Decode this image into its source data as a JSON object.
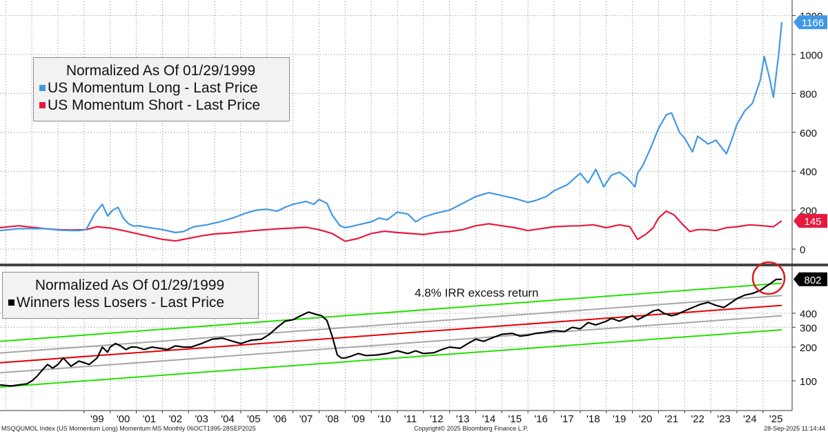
{
  "chart_data": [
    {
      "type": "line",
      "title": "Normalized As Of 01/29/1999",
      "ylim": [
        -30,
        1215
      ],
      "yticks": [
        0,
        200,
        400,
        600,
        800,
        1000,
        1200
      ],
      "grid": true,
      "legend_position": "top-left",
      "series": [
        {
          "name": "US Momentum Long - Last Price",
          "color": "#3f97e6",
          "last_label": "1166",
          "x": [
            1995.78,
            1996.5,
            1997.5,
            1998.0,
            1998.5,
            1998.8,
            1999.08,
            1999.4,
            1999.7,
            1999.9,
            2000.1,
            2000.3,
            2000.5,
            2000.7,
            2000.9,
            2001.1,
            2001.5,
            2002.0,
            2002.5,
            2002.8,
            2003.2,
            2003.7,
            2004.2,
            2004.7,
            2005.2,
            2005.6,
            2006.0,
            2006.4,
            2006.7,
            2007.0,
            2007.5,
            2007.8,
            2008.0,
            2008.3,
            2008.5,
            2008.8,
            2009.0,
            2009.2,
            2009.5,
            2010.0,
            2010.3,
            2010.6,
            2011.0,
            2011.4,
            2011.7,
            2012.0,
            2012.5,
            2013.0,
            2013.5,
            2014.0,
            2014.5,
            2015.0,
            2015.5,
            2016.0,
            2016.3,
            2016.7,
            2017.0,
            2017.5,
            2018.0,
            2018.3,
            2018.6,
            2018.9,
            2019.2,
            2019.5,
            2019.8,
            2020.1,
            2020.2,
            2020.4,
            2020.7,
            2021.0,
            2021.3,
            2021.5,
            2021.8,
            2022.0,
            2022.3,
            2022.5,
            2022.9,
            2023.2,
            2023.6,
            2023.8,
            2024.0,
            2024.3,
            2024.6,
            2024.9,
            2025.05,
            2025.25,
            2025.4,
            2025.6,
            2025.72
          ],
          "values": [
            95,
            105,
            105,
            98,
            95,
            95,
            100,
            180,
            230,
            170,
            200,
            215,
            160,
            130,
            118,
            120,
            110,
            100,
            85,
            90,
            115,
            125,
            140,
            160,
            185,
            200,
            205,
            195,
            215,
            230,
            245,
            230,
            255,
            235,
            175,
            120,
            110,
            115,
            125,
            140,
            160,
            150,
            190,
            180,
            140,
            165,
            185,
            200,
            235,
            270,
            290,
            275,
            260,
            240,
            250,
            270,
            300,
            330,
            390,
            340,
            410,
            320,
            380,
            395,
            365,
            320,
            390,
            430,
            520,
            620,
            690,
            700,
            600,
            570,
            500,
            580,
            540,
            560,
            490,
            560,
            640,
            710,
            750,
            870,
            990,
            880,
            780,
            1000,
            1166
          ]
        },
        {
          "name": "US Momentum Short - Last Price",
          "color": "#e8193c",
          "last_label": "145",
          "x": [
            1995.78,
            1996.5,
            1997.0,
            1997.5,
            1998.0,
            1998.5,
            1999.08,
            1999.5,
            2000.0,
            2000.5,
            2001.0,
            2001.5,
            2002.0,
            2002.5,
            2003.0,
            2003.5,
            2004.0,
            2004.5,
            2005.0,
            2005.5,
            2006.0,
            2006.5,
            2007.0,
            2007.5,
            2008.0,
            2008.5,
            2009.0,
            2009.5,
            2010.0,
            2010.5,
            2011.0,
            2011.5,
            2012.0,
            2012.5,
            2013.0,
            2013.5,
            2014.0,
            2014.5,
            2015.0,
            2015.5,
            2016.0,
            2016.5,
            2017.0,
            2017.5,
            2018.0,
            2018.5,
            2019.0,
            2019.5,
            2019.9,
            2020.2,
            2020.5,
            2020.8,
            2021.0,
            2021.3,
            2021.6,
            2021.9,
            2022.2,
            2022.5,
            2022.8,
            2023.2,
            2023.6,
            2024.0,
            2024.5,
            2025.0,
            2025.4,
            2025.72
          ],
          "values": [
            110,
            120,
            112,
            105,
            100,
            98,
            100,
            115,
            108,
            95,
            80,
            65,
            50,
            42,
            55,
            68,
            78,
            82,
            88,
            95,
            100,
            105,
            108,
            112,
            100,
            80,
            40,
            55,
            80,
            92,
            85,
            80,
            75,
            85,
            90,
            100,
            120,
            130,
            120,
            110,
            95,
            105,
            115,
            118,
            120,
            125,
            110,
            125,
            115,
            50,
            75,
            110,
            160,
            195,
            175,
            130,
            90,
            100,
            100,
            95,
            110,
            115,
            125,
            120,
            115,
            145
          ]
        }
      ]
    },
    {
      "type": "line",
      "title": "Normalized As Of 01/29/1999",
      "annotation": "4.8% IRR excess return",
      "yscale": "log",
      "ylim": [
        75,
        1020
      ],
      "yticks": [
        100,
        200,
        300,
        400
      ],
      "grid": true,
      "legend_position": "top-left",
      "x_tick_labels": [
        "'99",
        "'00",
        "'01",
        "'02",
        "'03",
        "'04",
        "'05",
        "'06",
        "'07",
        "'08",
        "'09",
        "'10",
        "'11",
        "'12",
        "'13",
        "'14",
        "'15",
        "'16",
        "'17",
        "'18",
        "'19",
        "'20",
        "'21",
        "'22",
        "'23",
        "'24",
        "'25"
      ],
      "series": [
        {
          "name": "Winners less Losers - Last Price",
          "color": "#000000",
          "last_label": "802",
          "x": [
            1995.78,
            1996.2,
            1996.5,
            1996.8,
            1997.0,
            1997.2,
            1997.4,
            1997.6,
            1997.8,
            1998.0,
            1998.2,
            1998.5,
            1998.8,
            1999.0,
            1999.2,
            1999.5,
            1999.7,
            1999.9,
            2000.0,
            2000.2,
            2000.4,
            2000.6,
            2000.8,
            2001.0,
            2001.3,
            2001.6,
            2001.9,
            2002.2,
            2002.5,
            2002.8,
            2003.1,
            2003.5,
            2003.9,
            2004.3,
            2004.7,
            2005.0,
            2005.4,
            2005.8,
            2006.1,
            2006.4,
            2006.7,
            2007.0,
            2007.3,
            2007.6,
            2007.9,
            2008.1,
            2008.3,
            2008.5,
            2008.7,
            2008.85,
            2009.0,
            2009.2,
            2009.5,
            2009.8,
            2010.2,
            2010.6,
            2011.0,
            2011.4,
            2011.7,
            2012.0,
            2012.4,
            2012.7,
            2013.0,
            2013.4,
            2013.7,
            2014.0,
            2014.3,
            2014.6,
            2015.0,
            2015.4,
            2015.7,
            2016.0,
            2016.3,
            2016.6,
            2017.0,
            2017.4,
            2017.7,
            2018.0,
            2018.3,
            2018.6,
            2019.0,
            2019.2,
            2019.5,
            2019.8,
            2020.0,
            2020.2,
            2020.5,
            2020.8,
            2021.0,
            2021.2,
            2021.5,
            2021.7,
            2022.0,
            2022.3,
            2022.6,
            2022.9,
            2023.2,
            2023.5,
            2023.8,
            2024.0,
            2024.3,
            2024.6,
            2024.9,
            2025.1,
            2025.3,
            2025.5,
            2025.72
          ],
          "values": [
            92,
            90,
            92,
            94,
            100,
            110,
            125,
            140,
            130,
            140,
            160,
            135,
            150,
            145,
            140,
            160,
            200,
            180,
            200,
            215,
            205,
            190,
            200,
            200,
            190,
            200,
            195,
            190,
            205,
            200,
            200,
            215,
            235,
            240,
            225,
            215,
            230,
            235,
            260,
            300,
            340,
            350,
            380,
            410,
            390,
            380,
            345,
            250,
            170,
            160,
            160,
            165,
            175,
            168,
            170,
            175,
            185,
            175,
            185,
            175,
            178,
            190,
            200,
            195,
            215,
            235,
            225,
            240,
            260,
            265,
            250,
            255,
            265,
            270,
            280,
            275,
            300,
            290,
            330,
            315,
            340,
            360,
            340,
            365,
            380,
            350,
            380,
            420,
            430,
            400,
            380,
            390,
            420,
            450,
            480,
            500,
            470,
            450,
            500,
            540,
            580,
            600,
            640,
            690,
            740,
            800,
            802
          ]
        },
        {
          "name": "",
          "color": "#e50000",
          "role": "trend",
          "x": [
            1995.78,
            2025.72
          ],
          "values": [
            145,
            470
          ]
        },
        {
          "name": "",
          "color": "#a6a6a6",
          "role": "band",
          "x": [
            1995.78,
            2025.72
          ],
          "values": [
            177,
            575
          ]
        },
        {
          "name": "",
          "color": "#a6a6a6",
          "role": "band",
          "x": [
            1995.78,
            2025.72
          ],
          "values": [
            118,
            380
          ]
        },
        {
          "name": "",
          "color": "#22e000",
          "role": "channel",
          "x": [
            1995.78,
            2025.72
          ],
          "values": [
            225,
            740
          ]
        },
        {
          "name": "",
          "color": "#22e000",
          "role": "channel",
          "x": [
            1995.78,
            2025.72
          ],
          "values": [
            88,
            285
          ]
        }
      ]
    }
  ],
  "footer": {
    "left": "MSQQUMOL Index (US Momentum Long) Momentum MS  Monthly 06OCT1995-28SEP2025",
    "center": "Copyright© 2025 Bloomberg Finance L.P.",
    "right": "28-Sep-2025 11:14:44"
  },
  "colors": {
    "highlight_circle": "#e01b1b"
  }
}
